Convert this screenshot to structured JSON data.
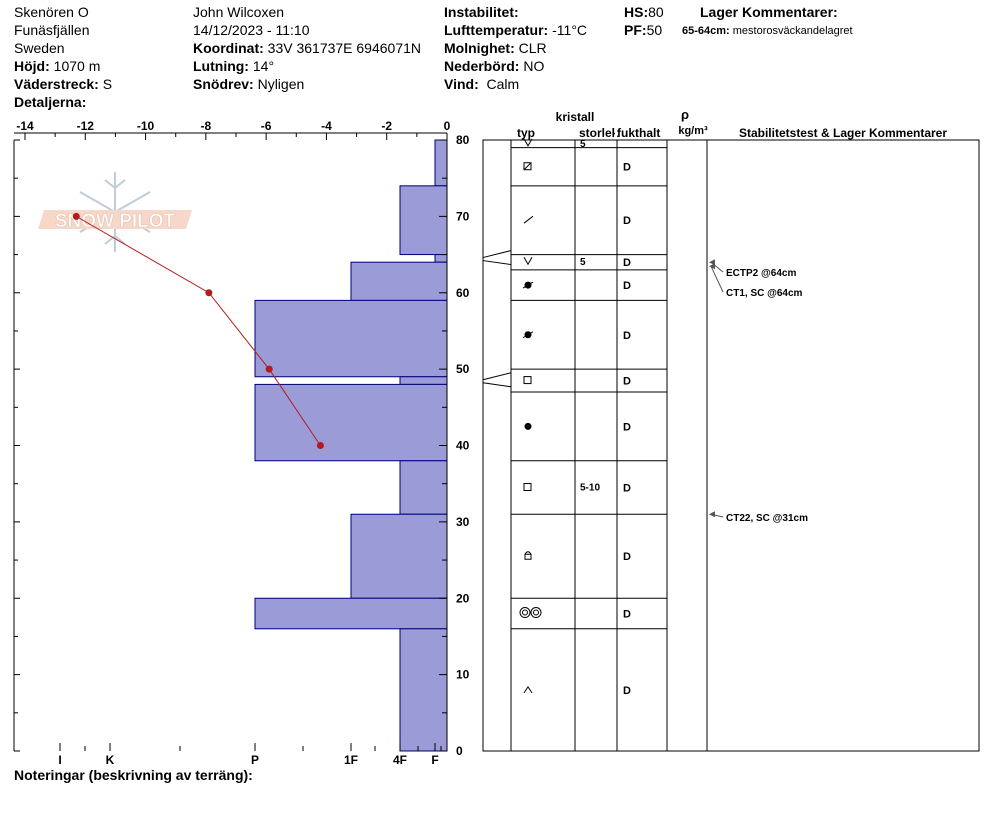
{
  "header": {
    "location": "Skenören O",
    "area": "Funäsfjällen",
    "country": "Sweden",
    "elevation_label": "Höjd:",
    "elevation_value": "1070 m",
    "aspect_label": "Väderstreck:",
    "aspect_value": "S",
    "details_label": "Detaljerna:",
    "observer": "John Wilcoxen",
    "datetime": "14/12/2023 - 11:10",
    "coord_label": "Koordinat:",
    "coord_value": "33V 361737E 6946071N",
    "slope_label": "Lutning:",
    "slope_value": "14°",
    "drift_label": "Snödrev:",
    "drift_value": "Nyligen",
    "instability_label": "Instabilitet:",
    "instability_value": "",
    "airtemp_label": "Lufttemperatur:",
    "airtemp_value": "-11°C",
    "sky_label": "Molnighet:",
    "sky_value": "CLR",
    "precip_label": "Nederbörd:",
    "precip_value": "NO",
    "wind_label": "Vind:",
    "wind_value": "Calm",
    "hs_label": "HS:",
    "hs_value": "80",
    "pf_label": "PF:",
    "pf_value": "50",
    "layer_comments_title": "Lager Kommentarer:",
    "layer_comment_range": "65-64cm:",
    "layer_comment_text": "mestorosväckandelagret"
  },
  "notes_label": "Noteringar (beskrivning av terräng):",
  "logo_text": "SNOW PILOT",
  "table_headers": {
    "crystal": "kristall",
    "type": "typ",
    "size": "storlek",
    "moisture": "fukthalt",
    "rho": "ρ",
    "density_unit": "kg/m³",
    "stability": "Stabilitetstest & Lager Kommentarer"
  },
  "colors": {
    "hardness_fill": "#9b9bd8",
    "hardness_stroke": "#00007a",
    "temp_line": "#b51a1a"
  },
  "chart_data": {
    "type": "snow_profile",
    "temp_axis": {
      "range": [
        -14,
        0
      ],
      "ticks": [
        -14,
        -12,
        -10,
        -8,
        -6,
        -4,
        -2,
        0
      ]
    },
    "height_axis": {
      "range": [
        0,
        80
      ],
      "ticks": [
        0,
        10,
        20,
        30,
        40,
        50,
        60,
        70,
        80
      ]
    },
    "hardness_axis": {
      "ticks": [
        "I",
        "K",
        "P",
        "1F",
        "4F",
        "F"
      ]
    },
    "temperature_profile": [
      {
        "height": 70,
        "temp": -12.3
      },
      {
        "height": 60,
        "temp": -7.9
      },
      {
        "height": 50,
        "temp": -5.9
      },
      {
        "height": 40,
        "temp": -4.2
      }
    ],
    "hardness_layers": [
      {
        "top": 80,
        "bottom": 74,
        "hardness": "F"
      },
      {
        "top": 74,
        "bottom": 65,
        "hardness": "4F"
      },
      {
        "top": 65,
        "bottom": 64,
        "hardness": "F"
      },
      {
        "top": 64,
        "bottom": 59,
        "hardness": "1F"
      },
      {
        "top": 59,
        "bottom": 49,
        "hardness": "P"
      },
      {
        "top": 49,
        "bottom": 48,
        "hardness": "4F"
      },
      {
        "top": 48,
        "bottom": 38,
        "hardness": "P"
      },
      {
        "top": 38,
        "bottom": 31,
        "hardness": "4F"
      },
      {
        "top": 31,
        "bottom": 20,
        "hardness": "1F"
      },
      {
        "top": 20,
        "bottom": 16,
        "hardness": "P"
      },
      {
        "top": 16,
        "bottom": 0,
        "hardness": "4F"
      }
    ],
    "layers": [
      {
        "top": 80,
        "bottom": 79,
        "grain": "precip-particles",
        "size": "5",
        "moisture": ""
      },
      {
        "top": 79,
        "bottom": 74,
        "grain": "depth-hoar-faceted",
        "size": "",
        "moisture": "D"
      },
      {
        "top": 74,
        "bottom": 65,
        "grain": "decomposing-fragments",
        "size": "",
        "moisture": "D"
      },
      {
        "top": 65,
        "bottom": 63,
        "grain": "precip-particles",
        "size": "5",
        "moisture": "D"
      },
      {
        "top": 63,
        "bottom": 59,
        "grain": "mixed-rounded-faceted",
        "size": "",
        "moisture": "D"
      },
      {
        "top": 59,
        "bottom": 50,
        "grain": "mixed-rounded-faceted",
        "size": "",
        "moisture": "D"
      },
      {
        "top": 50,
        "bottom": 47,
        "grain": "faceted-crystals",
        "size": "",
        "moisture": "D"
      },
      {
        "top": 47,
        "bottom": 38,
        "grain": "rounded-grains",
        "size": "",
        "moisture": "D"
      },
      {
        "top": 38,
        "bottom": 31,
        "grain": "faceted-crystals",
        "size": "5-10",
        "moisture": "D"
      },
      {
        "top": 31,
        "bottom": 20,
        "grain": "depth-hoar",
        "size": "",
        "moisture": "D"
      },
      {
        "top": 20,
        "bottom": 16,
        "grain": "melt-forms-clusters",
        "size": "",
        "moisture": "D"
      },
      {
        "top": 16,
        "bottom": 0,
        "grain": "depth-hoar-chain",
        "size": "",
        "moisture": "D"
      }
    ],
    "interfaces": [
      65,
      49
    ],
    "stability_tests": [
      {
        "label": "ECTP2 @64cm",
        "height": 64
      },
      {
        "label": "CT1, SC @64cm",
        "height": 64
      },
      {
        "label": "CT22, SC @31cm",
        "height": 31
      }
    ]
  }
}
